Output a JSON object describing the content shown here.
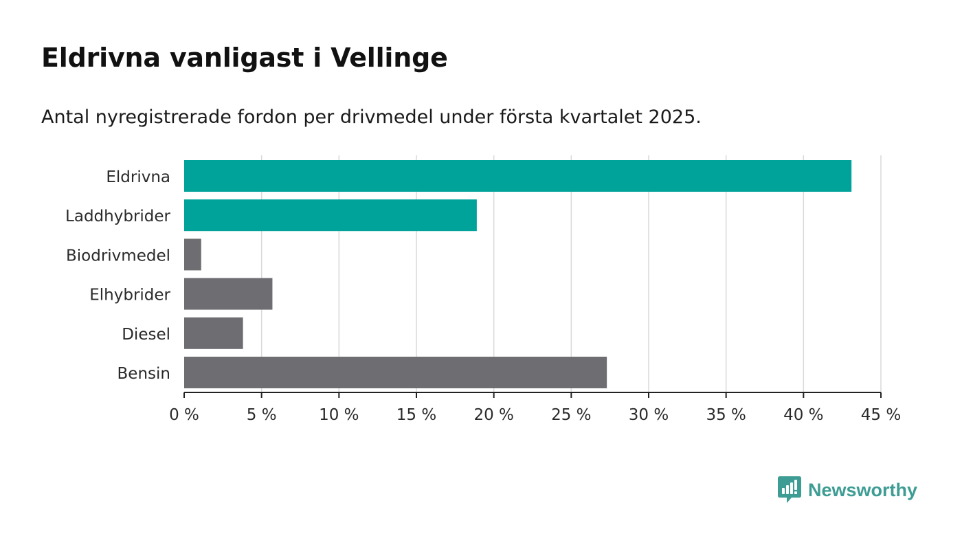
{
  "title": "Eldrivna vanligast i Vellinge",
  "subtitle": "Antal nyregistrerade fordon per drivmedel under första kvartalet 2025.",
  "brand": {
    "name": "Newsworthy",
    "color": "#3d9c93",
    "icon": "bar-chart-logo-icon"
  },
  "colors": {
    "highlight": "#00a39a",
    "default": "#6e6d72",
    "grid": "#d9d9d9",
    "axis": "#222222"
  },
  "chart_data": {
    "type": "bar",
    "orientation": "horizontal",
    "categories": [
      "Eldrivna",
      "Laddhybrider",
      "Biodrivmedel",
      "Elhybrider",
      "Diesel",
      "Bensin"
    ],
    "values": [
      43.1,
      18.9,
      1.1,
      5.7,
      3.8,
      27.3
    ],
    "highlighted": [
      true,
      true,
      false,
      false,
      false,
      false
    ],
    "xlim": [
      0,
      45
    ],
    "xticks": [
      0,
      5,
      10,
      15,
      20,
      25,
      30,
      35,
      40,
      45
    ],
    "tick_labels": [
      "0 %",
      "5 %",
      "10 %",
      "15 %",
      "20 %",
      "25 %",
      "30 %",
      "35 %",
      "40 %",
      "45 %"
    ],
    "grid": true,
    "legend": "none"
  }
}
